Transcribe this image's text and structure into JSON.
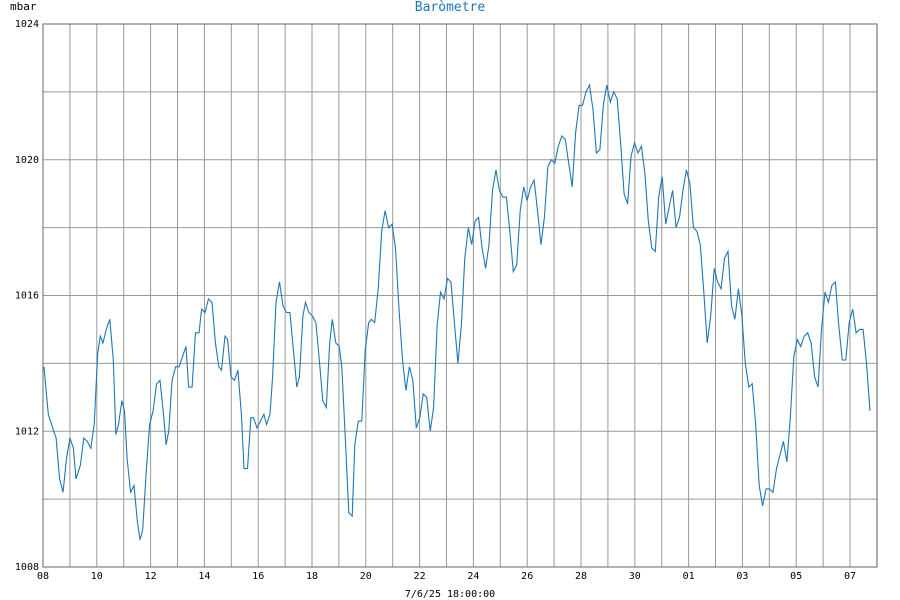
{
  "chart_data": {
    "type": "line",
    "title": "Baròmetre",
    "ylabel": "mbar",
    "xlabel": "7/6/25 18:00:00",
    "ylim": [
      1008,
      1024
    ],
    "y_ticks": [
      1008,
      1012,
      1016,
      1020,
      1024
    ],
    "x_tick_labels": [
      "08",
      "10",
      "12",
      "14",
      "16",
      "18",
      "20",
      "22",
      "24",
      "26",
      "28",
      "30",
      "01",
      "03",
      "05",
      "07"
    ],
    "x_range_days": [
      0,
      31
    ],
    "grid": true,
    "line_color": "#1f77b4",
    "series": [
      {
        "points": [
          [
            0.0,
            1013.9
          ],
          [
            0.25,
            1012.5
          ],
          [
            0.5,
            1012.1
          ],
          [
            0.7,
            1011.8
          ],
          [
            0.9,
            1010.6
          ],
          [
            1.1,
            1010.2
          ],
          [
            1.3,
            1011.2
          ],
          [
            1.5,
            1011.8
          ],
          [
            1.7,
            1011.5
          ],
          [
            1.85,
            1010.6
          ],
          [
            2.1,
            1011.0
          ],
          [
            2.3,
            1011.8
          ],
          [
            2.5,
            1011.7
          ],
          [
            2.7,
            1011.5
          ],
          [
            2.9,
            1012.2
          ],
          [
            3.1,
            1014.3
          ],
          [
            3.25,
            1014.8
          ],
          [
            3.4,
            1014.6
          ],
          [
            3.6,
            1015.0
          ],
          [
            3.8,
            1015.3
          ],
          [
            4.0,
            1014.1
          ],
          [
            4.15,
            1011.9
          ],
          [
            4.3,
            1012.2
          ],
          [
            4.5,
            1012.9
          ],
          [
            4.65,
            1012.6
          ],
          [
            4.8,
            1011.2
          ],
          [
            5.0,
            1010.2
          ],
          [
            5.2,
            1010.4
          ],
          [
            5.4,
            1009.3
          ],
          [
            5.55,
            1008.8
          ],
          [
            5.7,
            1009.1
          ],
          [
            5.9,
            1010.8
          ],
          [
            6.1,
            1012.2
          ],
          [
            6.3,
            1012.6
          ],
          [
            6.5,
            1013.4
          ],
          [
            6.7,
            1013.5
          ],
          [
            6.9,
            1012.5
          ],
          [
            7.05,
            1011.6
          ],
          [
            7.2,
            1012.0
          ],
          [
            7.4,
            1013.5
          ],
          [
            7.6,
            1013.9
          ],
          [
            7.8,
            1013.9
          ],
          [
            8.0,
            1014.2
          ],
          [
            8.2,
            1014.5
          ],
          [
            8.35,
            1013.3
          ],
          [
            8.55,
            1013.3
          ],
          [
            8.75,
            1014.9
          ],
          [
            8.95,
            1014.9
          ],
          [
            9.1,
            1015.6
          ],
          [
            9.3,
            1015.5
          ],
          [
            9.5,
            1015.9
          ],
          [
            9.7,
            1015.8
          ],
          [
            9.9,
            1014.6
          ],
          [
            10.1,
            1013.9
          ],
          [
            10.25,
            1013.8
          ],
          [
            10.45,
            1014.8
          ],
          [
            10.6,
            1014.7
          ],
          [
            10.8,
            1013.6
          ],
          [
            11.0,
            1013.5
          ],
          [
            11.2,
            1013.8
          ],
          [
            11.4,
            1012.5
          ],
          [
            11.55,
            1010.9
          ],
          [
            11.75,
            1010.9
          ],
          [
            11.95,
            1012.4
          ],
          [
            12.1,
            1012.4
          ],
          [
            12.3,
            1012.1
          ],
          [
            12.5,
            1012.3
          ],
          [
            12.7,
            1012.5
          ],
          [
            12.85,
            1012.2
          ],
          [
            13.05,
            1012.5
          ],
          [
            13.2,
            1013.6
          ],
          [
            13.4,
            1015.8
          ],
          [
            13.6,
            1016.4
          ],
          [
            13.8,
            1015.7
          ],
          [
            14.0,
            1015.5
          ],
          [
            14.2,
            1015.5
          ],
          [
            14.4,
            1014.4
          ],
          [
            14.6,
            1013.3
          ],
          [
            14.75,
            1013.6
          ],
          [
            14.95,
            1015.4
          ],
          [
            15.1,
            1015.8
          ],
          [
            15.3,
            1015.5
          ],
          [
            15.5,
            1015.4
          ],
          [
            15.7,
            1015.2
          ],
          [
            15.9,
            1014.1
          ],
          [
            16.1,
            1012.9
          ],
          [
            16.3,
            1012.7
          ],
          [
            16.5,
            1014.6
          ],
          [
            16.65,
            1015.3
          ],
          [
            16.85,
            1014.6
          ],
          [
            17.05,
            1014.5
          ],
          [
            17.2,
            1013.9
          ],
          [
            17.4,
            1011.8
          ],
          [
            17.6,
            1009.6
          ],
          [
            17.8,
            1009.5
          ],
          [
            17.95,
            1011.6
          ],
          [
            18.15,
            1012.3
          ],
          [
            18.35,
            1012.3
          ],
          [
            18.55,
            1014.4
          ],
          [
            18.75,
            1015.2
          ],
          [
            18.9,
            1015.3
          ],
          [
            19.1,
            1015.2
          ],
          [
            19.3,
            1016.2
          ],
          [
            19.5,
            1017.9
          ],
          [
            19.7,
            1018.5
          ],
          [
            19.9,
            1018.0
          ],
          [
            20.1,
            1018.1
          ],
          [
            20.3,
            1017.4
          ],
          [
            20.5,
            1015.6
          ],
          [
            20.7,
            1014.1
          ],
          [
            20.9,
            1013.2
          ],
          [
            21.1,
            1013.9
          ],
          [
            21.3,
            1013.5
          ],
          [
            21.5,
            1012.1
          ],
          [
            21.7,
            1012.4
          ],
          [
            21.9,
            1013.1
          ],
          [
            22.1,
            1013.0
          ],
          [
            22.3,
            1012.0
          ],
          [
            22.5,
            1012.7
          ],
          [
            22.7,
            1015.1
          ],
          [
            22.9,
            1016.1
          ],
          [
            23.1,
            1015.9
          ],
          [
            23.3,
            1016.5
          ],
          [
            23.5,
            1016.4
          ],
          [
            23.7,
            1015.2
          ],
          [
            23.9,
            1014.0
          ],
          [
            24.1,
            1015.1
          ],
          [
            24.3,
            1017.1
          ],
          [
            24.5,
            1018.0
          ],
          [
            24.7,
            1017.5
          ],
          [
            24.9,
            1018.2
          ],
          [
            25.1,
            1018.3
          ],
          [
            25.3,
            1017.4
          ],
          [
            25.5,
            1016.8
          ],
          [
            25.7,
            1017.5
          ],
          [
            25.9,
            1019.1
          ],
          [
            26.1,
            1019.7
          ],
          [
            26.3,
            1019.1
          ],
          [
            26.5,
            1018.9
          ],
          [
            26.7,
            1018.9
          ],
          [
            26.9,
            1017.9
          ],
          [
            27.1,
            1016.7
          ],
          [
            27.3,
            1016.9
          ],
          [
            27.5,
            1018.5
          ],
          [
            27.7,
            1019.2
          ],
          [
            27.9,
            1018.8
          ],
          [
            28.1,
            1019.2
          ],
          [
            28.3,
            1019.4
          ],
          [
            28.5,
            1018.5
          ],
          [
            28.7,
            1017.5
          ],
          [
            28.9,
            1018.3
          ],
          [
            29.1,
            1019.8
          ],
          [
            29.3,
            1020.0
          ],
          [
            29.5,
            1019.9
          ],
          [
            29.7,
            1020.4
          ],
          [
            29.9,
            1020.7
          ],
          [
            30.1,
            1020.6
          ],
          [
            30.3,
            1019.9
          ],
          [
            30.5,
            1019.2
          ],
          [
            30.7,
            1020.8
          ],
          [
            30.9,
            1021.6
          ],
          [
            31.1,
            1021.6
          ],
          [
            31.3,
            1022.0
          ],
          [
            31.5,
            1022.2
          ],
          [
            31.7,
            1021.5
          ],
          [
            31.9,
            1020.2
          ],
          [
            32.1,
            1020.3
          ],
          [
            32.3,
            1021.6
          ],
          [
            32.5,
            1022.2
          ],
          [
            32.7,
            1021.7
          ],
          [
            32.9,
            1022.0
          ],
          [
            33.1,
            1021.8
          ],
          [
            33.3,
            1020.5
          ],
          [
            33.5,
            1019.0
          ],
          [
            33.7,
            1018.7
          ],
          [
            33.9,
            1020.1
          ],
          [
            34.1,
            1020.5
          ],
          [
            34.3,
            1020.2
          ],
          [
            34.5,
            1020.4
          ],
          [
            34.7,
            1019.6
          ],
          [
            34.9,
            1018.2
          ],
          [
            35.1,
            1017.4
          ],
          [
            35.3,
            1017.3
          ],
          [
            35.5,
            1018.9
          ],
          [
            35.7,
            1019.5
          ],
          [
            35.9,
            1018.1
          ],
          [
            36.1,
            1018.6
          ],
          [
            36.3,
            1019.1
          ],
          [
            36.5,
            1018.0
          ],
          [
            36.7,
            1018.3
          ],
          [
            36.9,
            1019.1
          ],
          [
            37.1,
            1019.7
          ],
          [
            37.3,
            1019.3
          ],
          [
            37.5,
            1018.0
          ],
          [
            37.7,
            1017.9
          ],
          [
            37.9,
            1017.5
          ],
          [
            38.1,
            1016.1
          ],
          [
            38.3,
            1014.6
          ],
          [
            38.5,
            1015.4
          ],
          [
            38.7,
            1016.8
          ],
          [
            38.9,
            1016.4
          ],
          [
            39.1,
            1016.2
          ],
          [
            39.3,
            1017.1
          ],
          [
            39.5,
            1017.3
          ],
          [
            39.7,
            1015.7
          ],
          [
            39.9,
            1015.3
          ],
          [
            40.1,
            1016.2
          ],
          [
            40.3,
            1015.4
          ],
          [
            40.5,
            1014.0
          ],
          [
            40.7,
            1013.3
          ],
          [
            40.9,
            1013.4
          ],
          [
            41.1,
            1012.2
          ],
          [
            41.3,
            1010.4
          ],
          [
            41.5,
            1009.8
          ],
          [
            41.7,
            1010.3
          ],
          [
            41.9,
            1010.3
          ],
          [
            42.1,
            1010.2
          ],
          [
            42.3,
            1010.9
          ],
          [
            42.5,
            1011.3
          ],
          [
            42.7,
            1011.7
          ],
          [
            42.9,
            1011.1
          ],
          [
            43.1,
            1012.4
          ],
          [
            43.3,
            1014.2
          ],
          [
            43.5,
            1014.7
          ],
          [
            43.7,
            1014.5
          ],
          [
            43.9,
            1014.8
          ],
          [
            44.1,
            1014.9
          ],
          [
            44.3,
            1014.6
          ],
          [
            44.5,
            1013.6
          ],
          [
            44.7,
            1013.3
          ],
          [
            44.9,
            1015.0
          ],
          [
            45.1,
            1016.1
          ],
          [
            45.3,
            1015.8
          ],
          [
            45.5,
            1016.3
          ],
          [
            45.7,
            1016.4
          ],
          [
            45.9,
            1015.1
          ],
          [
            46.1,
            1014.1
          ],
          [
            46.3,
            1014.1
          ],
          [
            46.5,
            1015.2
          ],
          [
            46.7,
            1015.6
          ],
          [
            46.9,
            1014.9
          ],
          [
            47.1,
            1015.0
          ],
          [
            47.3,
            1015.0
          ],
          [
            47.5,
            1014.0
          ],
          [
            47.7,
            1012.6
          ]
        ]
      }
    ]
  }
}
